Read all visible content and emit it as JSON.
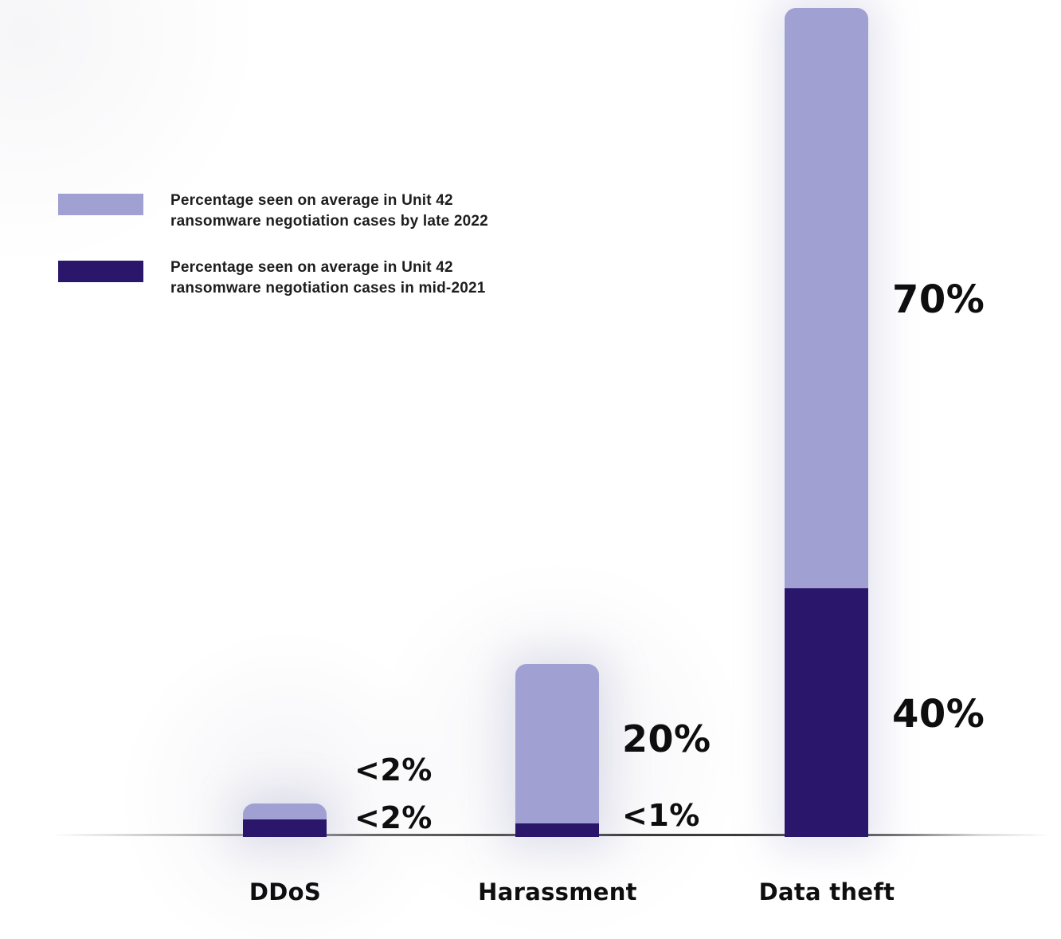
{
  "chart_data": {
    "type": "bar",
    "subtype": "overlaid-stacked-columns",
    "categories": [
      "DDoS",
      "Harassment",
      "Data theft"
    ],
    "series": [
      {
        "name": "Percentage seen on average in Unit 42 ransomware negotiation cases by late 2022",
        "values_label": [
          "<2%",
          "20%",
          "70%"
        ],
        "values_numeric": [
          2,
          20,
          70
        ],
        "color": "#A0A0D2"
      },
      {
        "name": "Percentage seen on average in Unit 42 ransomware negotiation cases in mid-2021",
        "values_label": [
          "<2%",
          "<1%",
          "40%"
        ],
        "values_numeric": [
          2,
          1,
          40
        ],
        "color": "#2A176B"
      }
    ],
    "title": "",
    "xlabel": "",
    "ylabel": "",
    "ylim": [
      0,
      100
    ],
    "grid": false,
    "axis_labels_shown": false,
    "legend_position": "top-left",
    "value_labels": "beside bars"
  },
  "legend": {
    "items": [
      {
        "color": "#A0A0D2",
        "line1": "Percentage seen on average in Unit 42",
        "line2": "ransomware negotiation cases by late 2022"
      },
      {
        "color": "#2A176B",
        "line1": "Percentage seen on average in Unit 42",
        "line2": "ransomware negotiation cases in mid-2021"
      }
    ]
  },
  "bars": [
    {
      "category": "DDoS",
      "label_late_2022": "<2%",
      "label_mid_2021": "<2%"
    },
    {
      "category": "Harassment",
      "label_late_2022": "20%",
      "label_mid_2021": "<1%"
    },
    {
      "category": "Data theft",
      "label_late_2022": "70%",
      "label_mid_2021": "40%"
    }
  ],
  "colors": {
    "late_2022_bar": "#A0A0D2",
    "mid_2021_bar": "#2A176B",
    "label_text": "#0E0E0E",
    "axis_line_dark": "#3A3A3A",
    "background": "#FFFFFF"
  }
}
